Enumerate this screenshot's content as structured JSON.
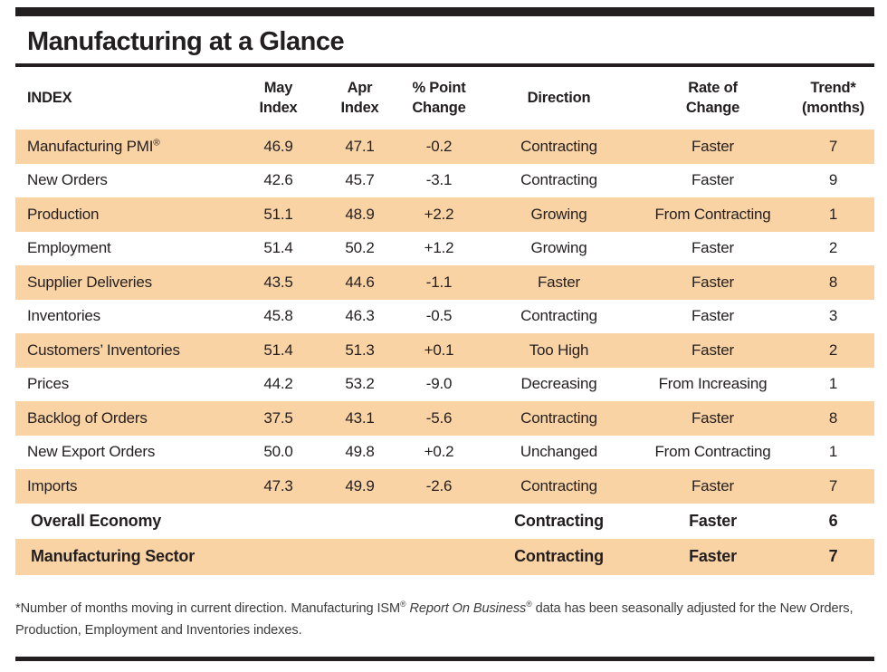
{
  "page": {
    "title": "Manufacturing at a Glance",
    "colors": {
      "rule_black": "#231f20",
      "row_shade": "#fad3a4",
      "text": "#231f20"
    }
  },
  "table": {
    "columns": [
      {
        "key": "index",
        "label": "INDEX",
        "align": "left"
      },
      {
        "key": "may",
        "label": "May\nIndex",
        "align": "center"
      },
      {
        "key": "apr",
        "label": "Apr\nIndex",
        "align": "center"
      },
      {
        "key": "change",
        "label": "% Point\nChange",
        "align": "center"
      },
      {
        "key": "direction",
        "label": "Direction",
        "align": "center"
      },
      {
        "key": "rate",
        "label": "Rate of\nChange",
        "align": "center"
      },
      {
        "key": "trend",
        "label": "Trend*\n(months)",
        "align": "center"
      }
    ],
    "rows": [
      {
        "index": "Manufacturing PMI®",
        "may": "46.9",
        "apr": "47.1",
        "change": "-0.2",
        "direction": "Contracting",
        "rate": "Faster",
        "trend": "7",
        "shaded": true
      },
      {
        "index": "New Orders",
        "may": "42.6",
        "apr": "45.7",
        "change": "-3.1",
        "direction": "Contracting",
        "rate": "Faster",
        "trend": "9",
        "shaded": false
      },
      {
        "index": "Production",
        "may": "51.1",
        "apr": "48.9",
        "change": "+2.2",
        "direction": "Growing",
        "rate": "From Contracting",
        "trend": "1",
        "shaded": true
      },
      {
        "index": "Employment",
        "may": "51.4",
        "apr": "50.2",
        "change": "+1.2",
        "direction": "Growing",
        "rate": "Faster",
        "trend": "2",
        "shaded": false
      },
      {
        "index": "Supplier Deliveries",
        "may": "43.5",
        "apr": "44.6",
        "change": "-1.1",
        "direction": "Faster",
        "rate": "Faster",
        "trend": "8",
        "shaded": true
      },
      {
        "index": "Inventories",
        "may": "45.8",
        "apr": "46.3",
        "change": "-0.5",
        "direction": "Contracting",
        "rate": "Faster",
        "trend": "3",
        "shaded": false
      },
      {
        "index": "Customers’ Inventories",
        "may": "51.4",
        "apr": "51.3",
        "change": "+0.1",
        "direction": "Too High",
        "rate": "Faster",
        "trend": "2",
        "shaded": true
      },
      {
        "index": "Prices",
        "may": "44.2",
        "apr": "53.2",
        "change": "-9.0",
        "direction": "Decreasing",
        "rate": "From Increasing",
        "trend": "1",
        "shaded": false
      },
      {
        "index": "Backlog of Orders",
        "may": "37.5",
        "apr": "43.1",
        "change": "-5.6",
        "direction": "Contracting",
        "rate": "Faster",
        "trend": "8",
        "shaded": true
      },
      {
        "index": "New Export Orders",
        "may": "50.0",
        "apr": "49.8",
        "change": "+0.2",
        "direction": "Unchanged",
        "rate": "From Contracting",
        "trend": "1",
        "shaded": false
      },
      {
        "index": "Imports",
        "may": "47.3",
        "apr": "49.9",
        "change": "-2.6",
        "direction": "Contracting",
        "rate": "Faster",
        "trend": "7",
        "shaded": true
      }
    ],
    "summary_rows": [
      {
        "index": "Overall Economy",
        "may": "",
        "apr": "",
        "change": "",
        "direction": "Contracting",
        "rate": "Faster",
        "trend": "6",
        "shaded": false
      },
      {
        "index": "Manufacturing Sector",
        "may": "",
        "apr": "",
        "change": "",
        "direction": "Contracting",
        "rate": "Faster",
        "trend": "7",
        "shaded": true
      }
    ]
  },
  "footnote": {
    "parts": [
      {
        "text": "*Number of months moving in current direction. Manufacturing ISM"
      },
      {
        "text": "®",
        "sup": true
      },
      {
        "text": " "
      },
      {
        "text": "Report On Business",
        "italic": true
      },
      {
        "text": "®",
        "sup": true,
        "italic": true
      },
      {
        "text": " data has been seasonally adjusted for the New Orders,"
      },
      {
        "br": true
      },
      {
        "text": "Production, Employment and Inventories indexes."
      }
    ]
  }
}
